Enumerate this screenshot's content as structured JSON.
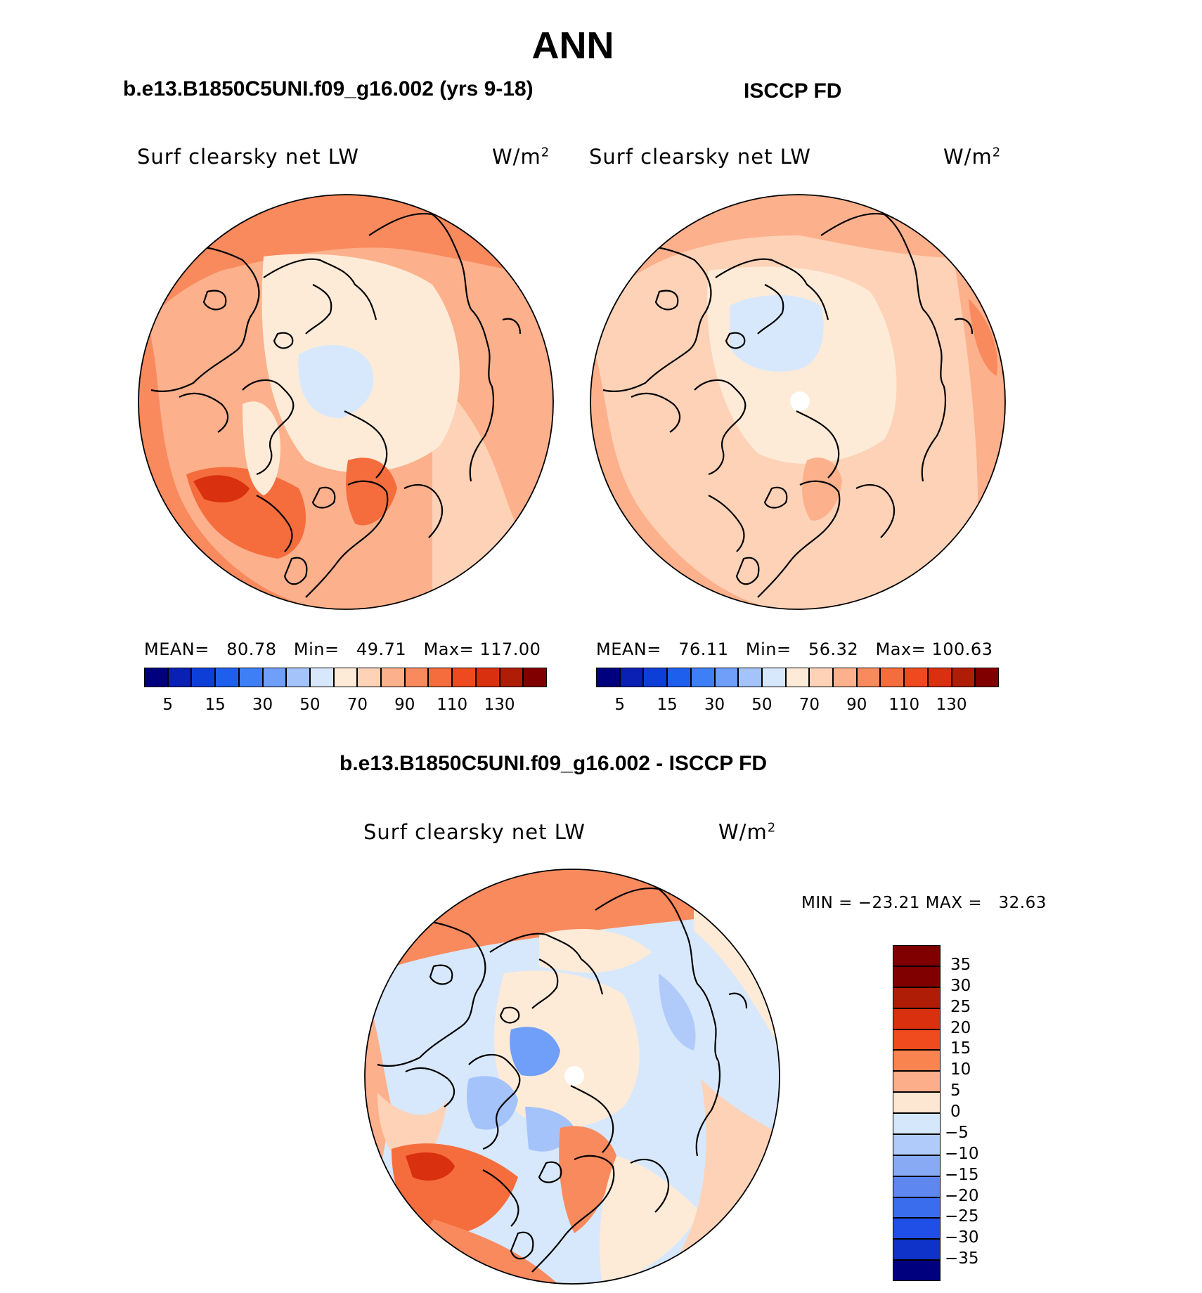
{
  "title": "ANN",
  "panels": {
    "model": {
      "case": "b.e13.B1850C5UNI.f09_g16.002 (yrs 9-18)",
      "variable": "Surf clearsky net LW",
      "units": "W/m",
      "units_sup": "2",
      "mean_label": "MEAN=",
      "mean": "80.78",
      "min_label": "Min=",
      "min": "49.71",
      "max_label": "Max=",
      "max": "117.00"
    },
    "obs": {
      "case": "ISCCP FD",
      "variable": "Surf clearsky net LW",
      "units": "W/m",
      "units_sup": "2",
      "mean_label": "MEAN=",
      "mean": "76.11",
      "min_label": "Min=",
      "min": "56.32",
      "max_label": "Max=",
      "max": "100.63"
    },
    "diff": {
      "case": "b.e13.B1850C5UNI.f09_g16.002 - ISCCP FD",
      "variable": "Surf clearsky net LW",
      "units": "W/m",
      "units_sup": "2",
      "min_label": "MIN =",
      "min": "−23.21",
      "max_label": "MAX =",
      "max": "32.63"
    }
  },
  "colorbar_abs": {
    "colors": [
      "#00007f",
      "#0a1fb4",
      "#0d3fd8",
      "#1f5fee",
      "#3f7ff5",
      "#6f9ff8",
      "#a5c3fb",
      "#d7e8fc",
      "#fdebd8",
      "#fdd2b7",
      "#fcb08b",
      "#f98a5d",
      "#f56d3d",
      "#ef4a1f",
      "#d9300f",
      "#b01d06",
      "#800000"
    ],
    "tick_labels": [
      "5",
      "15",
      "30",
      "50",
      "70",
      "90",
      "110",
      "130"
    ],
    "tick_boundary_index": [
      1,
      3,
      5,
      7,
      9,
      11,
      13,
      15
    ]
  },
  "colorbar_diff": {
    "colors": [
      "#800000",
      "#b01d06",
      "#d9300f",
      "#f04a1f",
      "#f98450",
      "#fcae8a",
      "#fde7d2",
      "#d5e8fb",
      "#b0cbf9",
      "#88aaf5",
      "#5e88f0",
      "#3a6cee",
      "#1f4fe6",
      "#0f32c8",
      "#00007f"
    ],
    "tick_labels": [
      "35",
      "30",
      "25",
      "20",
      "15",
      "10",
      "5",
      "0",
      "−5",
      "−10",
      "−15",
      "−20",
      "−25",
      "−30",
      "−35"
    ]
  },
  "maps": {
    "model": {
      "background": "#fcb08b"
    },
    "obs": {
      "background": "#fdd2b7"
    },
    "diff": {
      "background": "#d7e8fc"
    }
  }
}
